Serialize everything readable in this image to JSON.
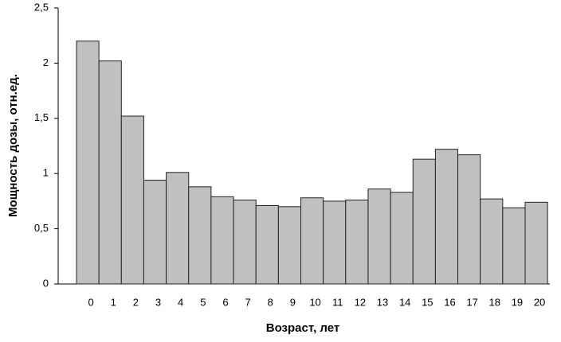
{
  "chart_data": {
    "type": "bar",
    "x_label": "Возраст, лет",
    "y_label": "Мощность дозы, отн.ед.",
    "categories": [
      "0",
      "1",
      "2",
      "3",
      "4",
      "5",
      "6",
      "7",
      "8",
      "9",
      "10",
      "11",
      "12",
      "13",
      "14",
      "15",
      "16",
      "17",
      "18",
      "19",
      "20"
    ],
    "values": [
      2.2,
      2.02,
      1.52,
      0.94,
      1.01,
      0.88,
      0.79,
      0.76,
      0.71,
      0.7,
      0.78,
      0.75,
      0.76,
      0.86,
      0.83,
      1.13,
      1.22,
      1.17,
      0.77,
      0.69,
      0.74
    ],
    "color": "#c0c0c0",
    "ylim": [
      0,
      2.5
    ],
    "yticks": [
      0,
      {
        "value": 0.5,
        "label": "0,5"
      },
      1,
      {
        "value": 1.5,
        "label": "1,5"
      },
      2,
      {
        "value": 2.5,
        "label": "2,5"
      }
    ],
    "grid": false
  }
}
